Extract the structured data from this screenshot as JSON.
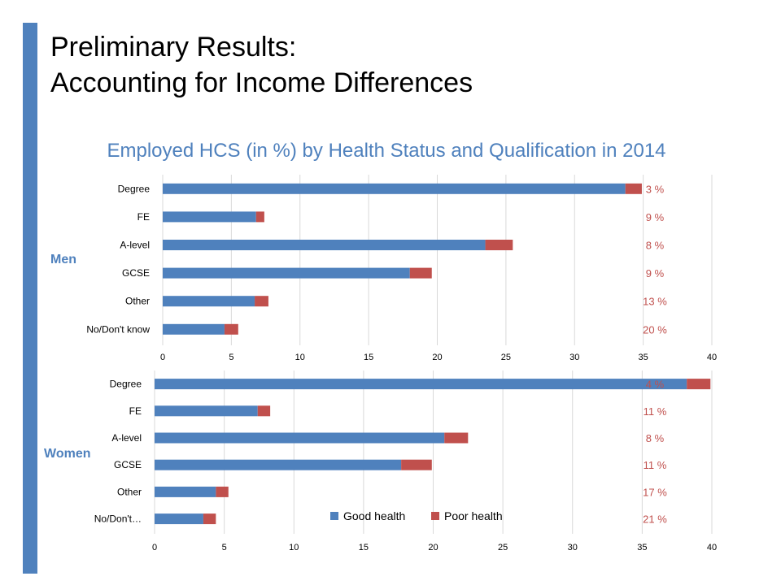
{
  "slide": {
    "title_line1": "Preliminary Results:",
    "title_line2": "Accounting for Income Differences",
    "chart_heading": "Employed HCS (in %) by Health Status and Qualification in 2014"
  },
  "colors": {
    "accent": "#4f81bd",
    "good_health": "#4f81bd",
    "poor_health": "#c0504d",
    "pct_label": "#c0504d",
    "gridline": "#d9d9d9"
  },
  "chart_data": [
    {
      "type": "bar",
      "orientation": "horizontal",
      "stacked": true,
      "panel_label": "Men",
      "categories": [
        "Degree",
        "FE",
        "A-level",
        "GCSE",
        "Other",
        "No/Don't know"
      ],
      "series": [
        {
          "name": "Good health",
          "values": [
            33.7,
            6.8,
            23.5,
            18.0,
            6.7,
            4.5
          ]
        },
        {
          "name": "Poor health",
          "values": [
            1.2,
            0.6,
            2.0,
            1.6,
            1.0,
            1.0
          ]
        }
      ],
      "annotations": [
        "3 %",
        "9 %",
        "8 %",
        "9 %",
        "13 %",
        "20 %"
      ],
      "xlim": [
        0,
        40
      ],
      "xticks": [
        0,
        5,
        10,
        15,
        20,
        25,
        30,
        35,
        40
      ],
      "grid": true,
      "legend": false
    },
    {
      "type": "bar",
      "orientation": "horizontal",
      "stacked": true,
      "panel_label": "Women",
      "categories": [
        "Degree",
        "FE",
        "A-level",
        "GCSE",
        "Other",
        "No/Don't…"
      ],
      "series": [
        {
          "name": "Good health",
          "values": [
            38.2,
            7.4,
            20.8,
            17.7,
            4.4,
            3.5
          ]
        },
        {
          "name": "Poor health",
          "values": [
            1.7,
            0.9,
            1.7,
            2.2,
            0.9,
            0.9
          ]
        }
      ],
      "annotations": [
        "4 %",
        "11 %",
        "8 %",
        "11 %",
        "17 %",
        "21 %"
      ],
      "xlim": [
        0,
        40
      ],
      "xticks": [
        0,
        5,
        10,
        15,
        20,
        25,
        30,
        35,
        40
      ],
      "grid": true,
      "legend": true,
      "legend_position": "bottom-center"
    }
  ]
}
